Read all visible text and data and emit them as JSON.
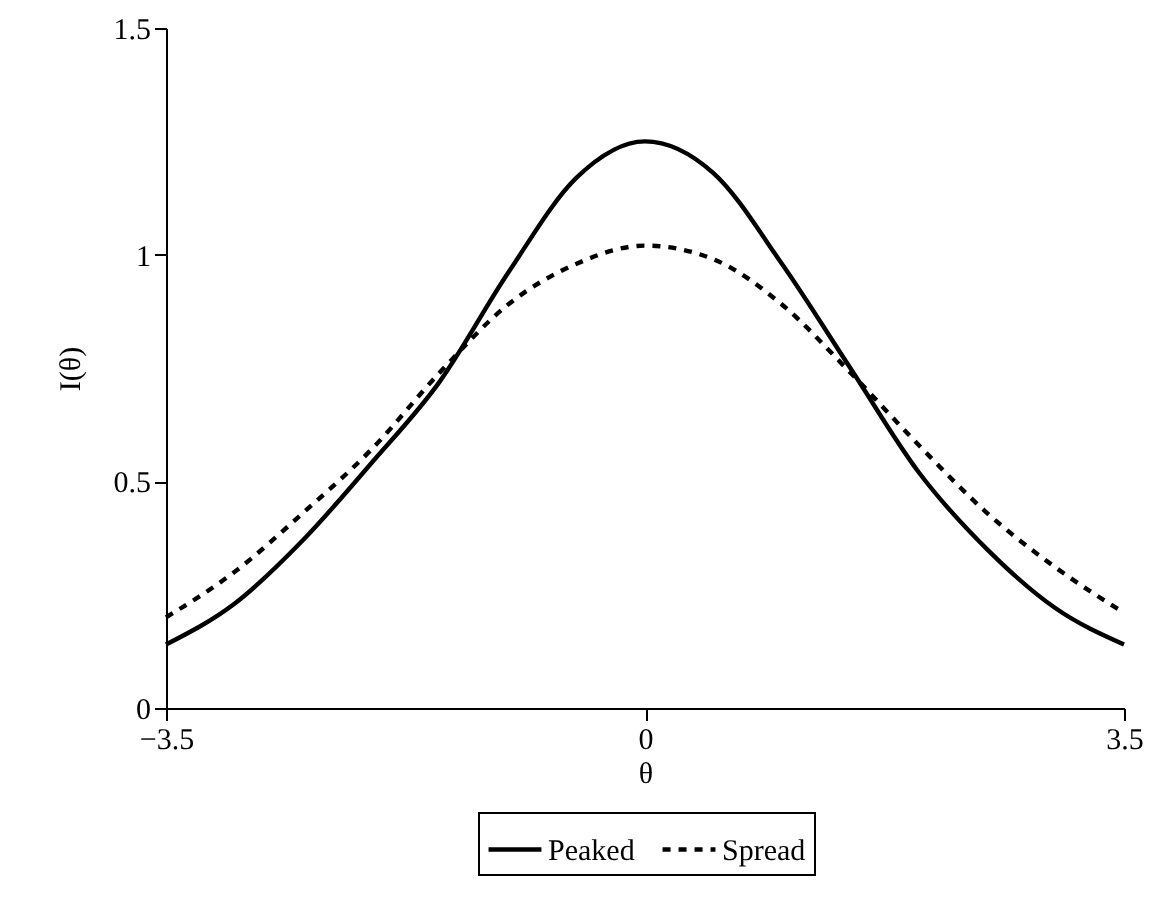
{
  "chart_data": {
    "type": "line",
    "xlabel": "θ",
    "ylabel": "I(θ)",
    "x": [
      -3.5,
      -3,
      -2.5,
      -2,
      -1.5,
      -1,
      -0.5,
      0,
      0.5,
      1,
      1.5,
      2,
      2.5,
      3,
      3.5
    ],
    "series": [
      {
        "name": "Peaked",
        "color": "#000000",
        "line_style": "solid",
        "values": [
          0.14,
          0.23,
          0.37,
          0.54,
          0.72,
          0.96,
          1.17,
          1.25,
          1.18,
          0.98,
          0.75,
          0.52,
          0.35,
          0.22,
          0.14
        ]
      },
      {
        "name": "Spread",
        "color": "#000000",
        "line_style": "dashed",
        "values": [
          0.2,
          0.3,
          0.43,
          0.57,
          0.74,
          0.89,
          0.98,
          1.02,
          0.99,
          0.89,
          0.74,
          0.58,
          0.43,
          0.31,
          0.21
        ]
      }
    ],
    "xlim": [
      -3.5,
      3.5
    ],
    "xticks": [
      {
        "value": -3.5,
        "label": "−3.5"
      },
      0,
      3.5
    ],
    "ylim": [
      0,
      1.5
    ],
    "yticks": [
      0,
      0.5,
      1,
      1.5
    ],
    "grid": false,
    "legend": "bottom",
    "marker": "none"
  }
}
